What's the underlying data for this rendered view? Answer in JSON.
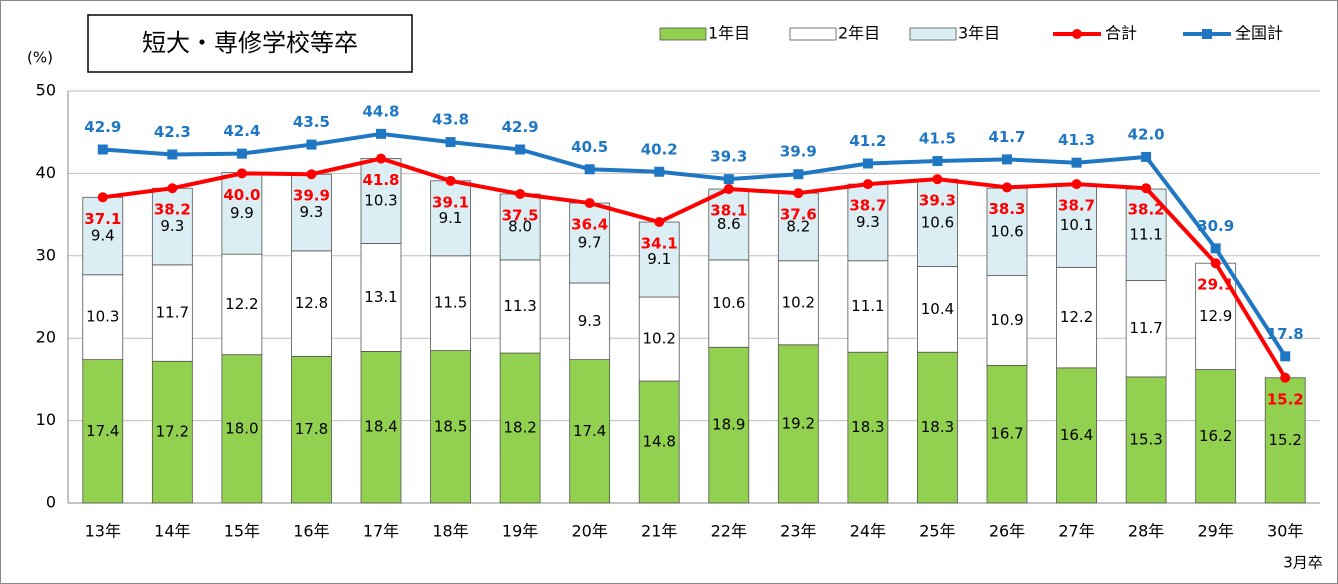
{
  "chart_data": {
    "type": "stacked-bar-line",
    "title": "短大・専修学校等卒",
    "ylabel": "(%)",
    "annotation": "3月卒",
    "categories": [
      "13年",
      "14年",
      "15年",
      "16年",
      "17年",
      "18年",
      "19年",
      "20年",
      "21年",
      "22年",
      "23年",
      "24年",
      "25年",
      "26年",
      "27年",
      "28年",
      "29年",
      "30年"
    ],
    "ylim": [
      0,
      50
    ],
    "yticks": [
      0,
      10,
      20,
      30,
      40,
      50
    ],
    "grid": true,
    "series": [
      {
        "name": "1年目",
        "kind": "bar",
        "color": "#92d050",
        "values": [
          17.4,
          17.2,
          18.0,
          17.8,
          18.4,
          18.5,
          18.2,
          17.4,
          14.8,
          18.9,
          19.2,
          18.3,
          18.3,
          16.7,
          16.4,
          15.3,
          16.2,
          15.2
        ],
        "value_labels": [
          "17.4",
          "17.2",
          "18.0",
          "17.8",
          "18.4",
          "18.5",
          "18.2",
          "17.4",
          "14.8",
          "18.9",
          "19.2",
          "18.3",
          "18.3",
          "16.7",
          "16.4",
          "15.3",
          "16.2",
          "15.2"
        ]
      },
      {
        "name": "2年目",
        "kind": "bar",
        "color": "#ffffff",
        "values": [
          10.3,
          11.7,
          12.2,
          12.8,
          13.1,
          11.5,
          11.3,
          9.3,
          10.2,
          10.6,
          10.2,
          11.1,
          10.4,
          10.9,
          12.2,
          11.7,
          12.9,
          null
        ]
      },
      {
        "name": "3年目",
        "kind": "bar",
        "color": "#dbeef4",
        "values": [
          9.4,
          9.3,
          9.9,
          9.3,
          10.3,
          9.1,
          8.0,
          9.7,
          9.1,
          8.6,
          8.2,
          9.3,
          10.6,
          10.6,
          10.1,
          11.1,
          null,
          null
        ],
        "value_labels": [
          "9.4",
          "9.3",
          "9.9",
          "9.3",
          "10.3",
          "9.1",
          "8.0",
          "9.7",
          "9.1",
          "8.6",
          "8.2",
          "9.3",
          "10.6",
          "10.6",
          "10.1",
          "11.1",
          null,
          null
        ]
      },
      {
        "name": "合計",
        "kind": "line",
        "marker": "circle",
        "color": "#ff0000",
        "values": [
          37.1,
          38.2,
          40.0,
          39.9,
          41.8,
          39.1,
          37.5,
          36.4,
          34.1,
          38.1,
          37.6,
          38.7,
          39.3,
          38.3,
          38.7,
          38.2,
          29.1,
          15.2
        ],
        "value_labels": [
          "37.1",
          "38.2",
          "40.0",
          "39.9",
          "41.8",
          "39.1",
          "37.5",
          "36.4",
          "34.1",
          "38.1",
          "37.6",
          "38.7",
          "39.3",
          "38.3",
          "38.7",
          "38.2",
          "29.1",
          "15.2"
        ]
      },
      {
        "name": "全国計",
        "kind": "line",
        "marker": "square",
        "color": "#1f77c4",
        "values": [
          42.9,
          42.3,
          42.4,
          43.5,
          44.8,
          43.8,
          42.9,
          40.5,
          40.2,
          39.3,
          39.9,
          41.2,
          41.5,
          41.7,
          41.3,
          42.0,
          30.9,
          17.8
        ],
        "value_labels": [
          "42.9",
          "42.3",
          "42.4",
          "43.5",
          "44.8",
          "43.8",
          "42.9",
          "40.5",
          "40.2",
          "39.3",
          "39.9",
          "41.2",
          "41.5",
          "41.7",
          "41.3",
          "42.0",
          "30.9",
          "17.8"
        ]
      }
    ]
  }
}
